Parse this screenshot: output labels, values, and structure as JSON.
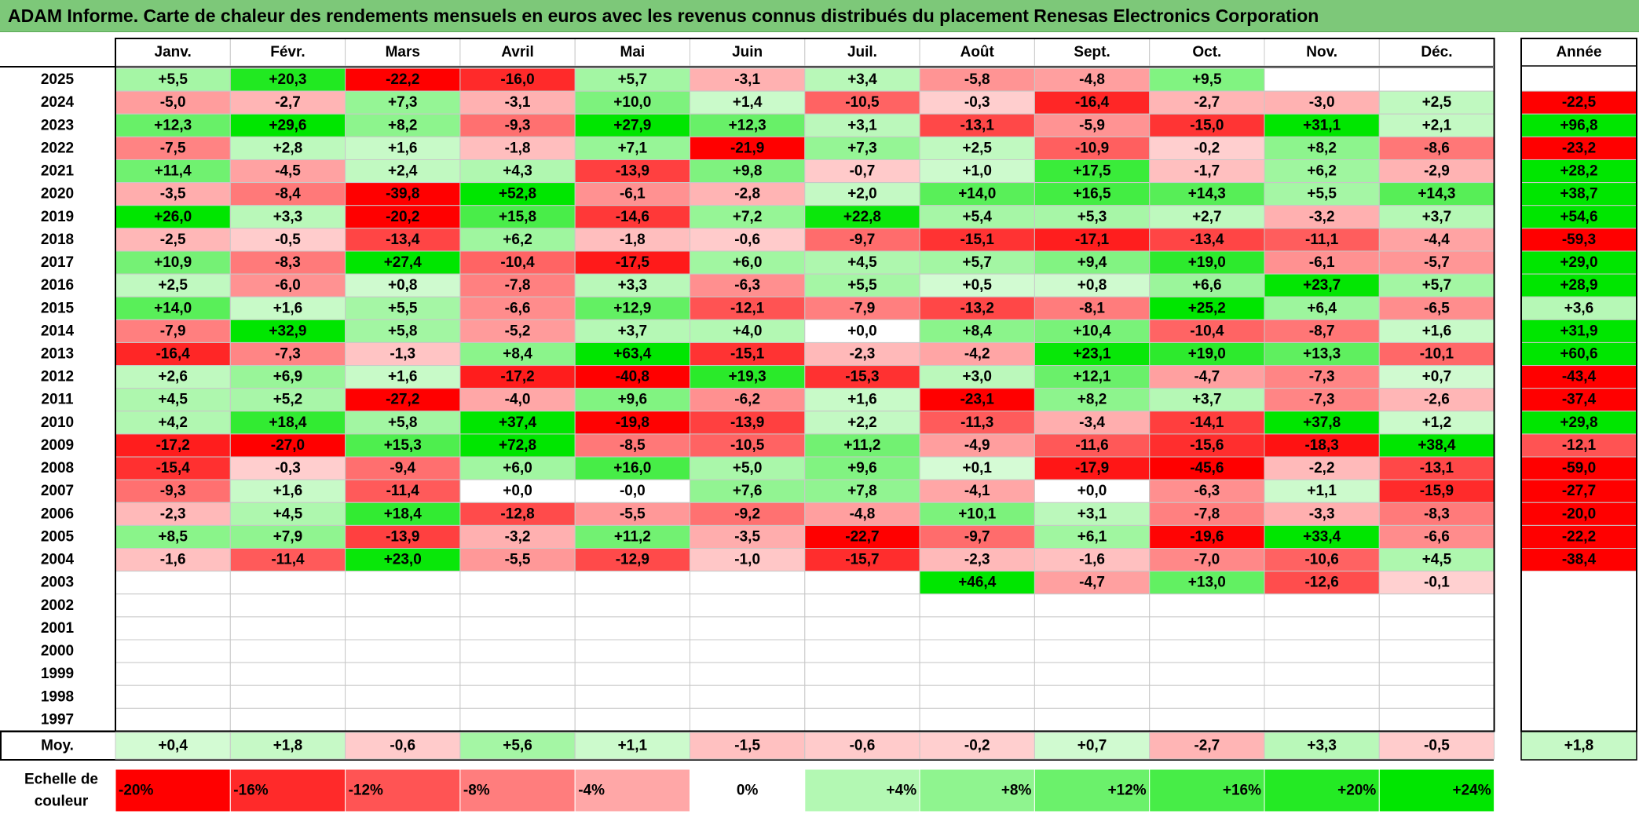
{
  "title": "ADAM Informe. Carte de chaleur des rendements mensuels en euros avec les revenus connus distribués du placement Renesas Electronics Corporation",
  "chart_data": {
    "type": "heatmap",
    "title": "ADAM Informe. Carte de chaleur des rendements mensuels en euros avec les revenus connus distribués du placement Renesas Electronics Corporation",
    "months": [
      "Janv.",
      "Févr.",
      "Mars",
      "Avril",
      "Mai",
      "Juin",
      "Juil.",
      "Août",
      "Sept.",
      "Oct.",
      "Nov.",
      "Déc."
    ],
    "year_header": "Année",
    "rows": [
      {
        "year": "2025",
        "values": [
          "+5,5",
          "+20,3",
          "-22,2",
          "-16,0",
          "+5,7",
          "-3,1",
          "+3,4",
          "-5,8",
          "-4,8",
          "+9,5",
          "",
          ""
        ],
        "annual": ""
      },
      {
        "year": "2024",
        "values": [
          "-5,0",
          "-2,7",
          "+7,3",
          "-3,1",
          "+10,0",
          "+1,4",
          "-10,5",
          "-0,3",
          "-16,4",
          "-2,7",
          "-3,0",
          "+2,5"
        ],
        "annual": "-22,5"
      },
      {
        "year": "2023",
        "values": [
          "+12,3",
          "+29,6",
          "+8,2",
          "-9,3",
          "+27,9",
          "+12,3",
          "+3,1",
          "-13,1",
          "-5,9",
          "-15,0",
          "+31,1",
          "+2,1"
        ],
        "annual": "+96,8"
      },
      {
        "year": "2022",
        "values": [
          "-7,5",
          "+2,8",
          "+1,6",
          "-1,8",
          "+7,1",
          "-21,9",
          "+7,3",
          "+2,5",
          "-10,9",
          "-0,2",
          "+8,2",
          "-8,6"
        ],
        "annual": "-23,2"
      },
      {
        "year": "2021",
        "values": [
          "+11,4",
          "-4,5",
          "+2,4",
          "+4,3",
          "-13,9",
          "+9,8",
          "-0,7",
          "+1,0",
          "+17,5",
          "-1,7",
          "+6,2",
          "-2,9"
        ],
        "annual": "+28,2"
      },
      {
        "year": "2020",
        "values": [
          "-3,5",
          "-8,4",
          "-39,8",
          "+52,8",
          "-6,1",
          "-2,8",
          "+2,0",
          "+14,0",
          "+16,5",
          "+14,3",
          "+5,5",
          "+14,3"
        ],
        "annual": "+38,7"
      },
      {
        "year": "2019",
        "values": [
          "+26,0",
          "+3,3",
          "-20,2",
          "+15,8",
          "-14,6",
          "+7,2",
          "+22,8",
          "+5,4",
          "+5,3",
          "+2,7",
          "-3,2",
          "+3,7"
        ],
        "annual": "+54,6"
      },
      {
        "year": "2018",
        "values": [
          "-2,5",
          "-0,5",
          "-13,4",
          "+6,2",
          "-1,8",
          "-0,6",
          "-9,7",
          "-15,1",
          "-17,1",
          "-13,4",
          "-11,1",
          "-4,4"
        ],
        "annual": "-59,3"
      },
      {
        "year": "2017",
        "values": [
          "+10,9",
          "-8,3",
          "+27,4",
          "-10,4",
          "-17,5",
          "+6,0",
          "+4,5",
          "+5,7",
          "+9,4",
          "+19,0",
          "-6,1",
          "-5,7"
        ],
        "annual": "+29,0"
      },
      {
        "year": "2016",
        "values": [
          "+2,5",
          "-6,0",
          "+0,8",
          "-7,8",
          "+3,3",
          "-6,3",
          "+5,5",
          "+0,5",
          "+0,8",
          "+6,6",
          "+23,7",
          "+5,7"
        ],
        "annual": "+28,9"
      },
      {
        "year": "2015",
        "values": [
          "+14,0",
          "+1,6",
          "+5,5",
          "-6,6",
          "+12,9",
          "-12,1",
          "-7,9",
          "-13,2",
          "-8,1",
          "+25,2",
          "+6,4",
          "-6,5"
        ],
        "annual": "+3,6"
      },
      {
        "year": "2014",
        "values": [
          "-7,9",
          "+32,9",
          "+5,8",
          "-5,2",
          "+3,7",
          "+4,0",
          "+0,0",
          "+8,4",
          "+10,4",
          "-10,4",
          "-8,7",
          "+1,6"
        ],
        "annual": "+31,9"
      },
      {
        "year": "2013",
        "values": [
          "-16,4",
          "-7,3",
          "-1,3",
          "+8,4",
          "+63,4",
          "-15,1",
          "-2,3",
          "-4,2",
          "+23,1",
          "+19,0",
          "+13,3",
          "-10,1"
        ],
        "annual": "+60,6"
      },
      {
        "year": "2012",
        "values": [
          "+2,6",
          "+6,9",
          "+1,6",
          "-17,2",
          "-40,8",
          "+19,3",
          "-15,3",
          "+3,0",
          "+12,1",
          "-4,7",
          "-7,3",
          "+0,7"
        ],
        "annual": "-43,4"
      },
      {
        "year": "2011",
        "values": [
          "+4,5",
          "+5,2",
          "-27,2",
          "-4,0",
          "+9,6",
          "-6,2",
          "+1,6",
          "-23,1",
          "+8,2",
          "+3,7",
          "-7,3",
          "-2,6"
        ],
        "annual": "-37,4"
      },
      {
        "year": "2010",
        "values": [
          "+4,2",
          "+18,4",
          "+5,8",
          "+37,4",
          "-19,8",
          "-13,9",
          "+2,2",
          "-11,3",
          "-3,4",
          "-14,1",
          "+37,8",
          "+1,2"
        ],
        "annual": "+29,8"
      },
      {
        "year": "2009",
        "values": [
          "-17,2",
          "-27,0",
          "+15,3",
          "+72,8",
          "-8,5",
          "-10,5",
          "+11,2",
          "-4,9",
          "-11,6",
          "-15,6",
          "-18,3",
          "+38,4"
        ],
        "annual": "-12,1"
      },
      {
        "year": "2008",
        "values": [
          "-15,4",
          "-0,3",
          "-9,4",
          "+6,0",
          "+16,0",
          "+5,0",
          "+9,6",
          "+0,1",
          "-17,9",
          "-45,6",
          "-2,2",
          "-13,1"
        ],
        "annual": "-59,0"
      },
      {
        "year": "2007",
        "values": [
          "-9,3",
          "+1,6",
          "-11,4",
          "+0,0",
          "-0,0",
          "+7,6",
          "+7,8",
          "-4,1",
          "+0,0",
          "-6,3",
          "+1,1",
          "-15,9"
        ],
        "annual": "-27,7"
      },
      {
        "year": "2006",
        "values": [
          "-2,3",
          "+4,5",
          "+18,4",
          "-12,8",
          "-5,5",
          "-9,2",
          "-4,8",
          "+10,1",
          "+3,1",
          "-7,8",
          "-3,3",
          "-8,3"
        ],
        "annual": "-20,0"
      },
      {
        "year": "2005",
        "values": [
          "+8,5",
          "+7,9",
          "-13,9",
          "-3,2",
          "+11,2",
          "-3,5",
          "-22,7",
          "-9,7",
          "+6,1",
          "-19,6",
          "+33,4",
          "-6,6"
        ],
        "annual": "-22,2"
      },
      {
        "year": "2004",
        "values": [
          "-1,6",
          "-11,4",
          "+23,0",
          "-5,5",
          "-12,9",
          "-1,0",
          "-15,7",
          "-2,3",
          "-1,6",
          "-7,0",
          "-10,6",
          "+4,5"
        ],
        "annual": "-38,4"
      },
      {
        "year": "2003",
        "values": [
          "",
          "",
          "",
          "",
          "",
          "",
          "",
          "+46,4",
          "-4,7",
          "+13,0",
          "-12,6",
          "-0,1"
        ],
        "annual": ""
      },
      {
        "year": "2002",
        "values": [
          "",
          "",
          "",
          "",
          "",
          "",
          "",
          "",
          "",
          "",
          "",
          ""
        ],
        "annual": ""
      },
      {
        "year": "2001",
        "values": [
          "",
          "",
          "",
          "",
          "",
          "",
          "",
          "",
          "",
          "",
          "",
          ""
        ],
        "annual": ""
      },
      {
        "year": "2000",
        "values": [
          "",
          "",
          "",
          "",
          "",
          "",
          "",
          "",
          "",
          "",
          "",
          ""
        ],
        "annual": ""
      },
      {
        "year": "1999",
        "values": [
          "",
          "",
          "",
          "",
          "",
          "",
          "",
          "",
          "",
          "",
          "",
          ""
        ],
        "annual": ""
      },
      {
        "year": "1998",
        "values": [
          "",
          "",
          "",
          "",
          "",
          "",
          "",
          "",
          "",
          "",
          "",
          ""
        ],
        "annual": ""
      },
      {
        "year": "1997",
        "values": [
          "",
          "",
          "",
          "",
          "",
          "",
          "",
          "",
          "",
          "",
          "",
          ""
        ],
        "annual": ""
      }
    ],
    "average": {
      "label": "Moy.",
      "values": [
        "+0,4",
        "+1,8",
        "-0,6",
        "+5,6",
        "+1,1",
        "-1,5",
        "-0,6",
        "-0,2",
        "+0,7",
        "-2,7",
        "+3,3",
        "-0,5"
      ],
      "annual": "+1,8"
    },
    "scale": {
      "label_line1": "Echelle de",
      "label_line2": "couleur",
      "steps": [
        {
          "label": "-20%",
          "value": -20
        },
        {
          "label": "-16%",
          "value": -16
        },
        {
          "label": "-12%",
          "value": -12
        },
        {
          "label": "-8%",
          "value": -8
        },
        {
          "label": "-4%",
          "value": -4
        },
        {
          "label": "0%",
          "value": 0
        },
        {
          "label": "+4%",
          "value": 4
        },
        {
          "label": "+8%",
          "value": 8
        },
        {
          "label": "+12%",
          "value": 12
        },
        {
          "label": "+16%",
          "value": 16
        },
        {
          "label": "+20%",
          "value": 20
        },
        {
          "label": "+24%",
          "value": 24
        }
      ]
    },
    "colors": {
      "negative_max": "#ff0000",
      "neutral": "#ffffff",
      "positive_max": "#00e600",
      "title_bar": "#7dc879"
    }
  }
}
